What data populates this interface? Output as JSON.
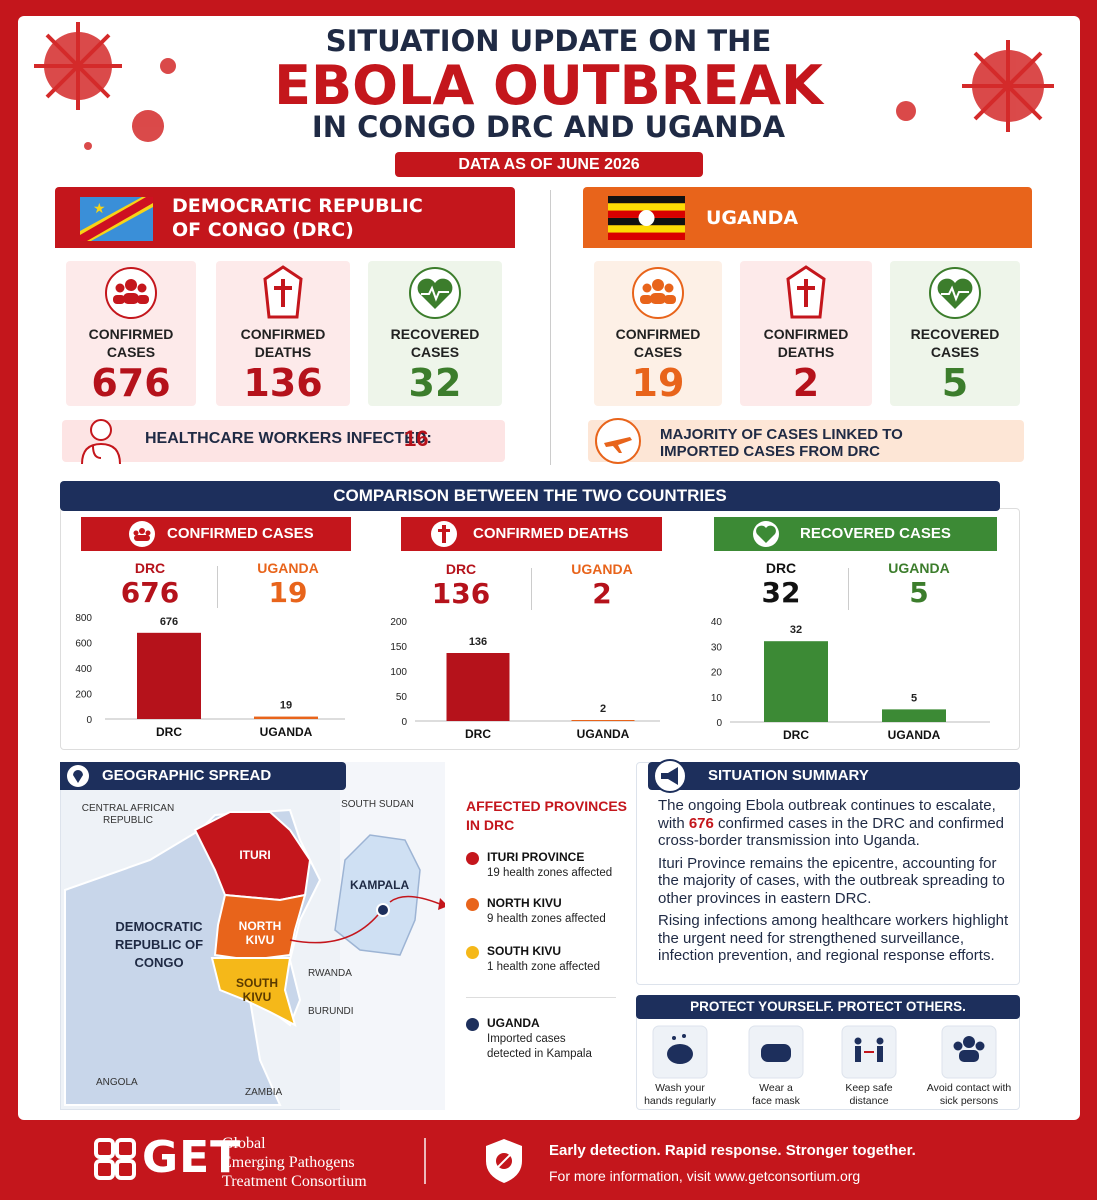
{
  "header": {
    "line1": "SITUATION UPDATE ON THE",
    "line2": "EBOLA OUTBREAK",
    "line3": "IN CONGO DRC AND UGANDA",
    "date": "DATA AS OF JUNE 2026"
  },
  "drc": {
    "name": [
      "DEMOCRATIC REPUBLIC",
      "OF CONGO (DRC)"
    ],
    "stats": [
      {
        "label": [
          "CONFIRMED",
          "CASES"
        ],
        "value": 676
      },
      {
        "label": [
          "CONFIRMED",
          "DEATHS"
        ],
        "value": 136
      },
      {
        "label": [
          "RECOVERED",
          "CASES"
        ],
        "value": 32
      }
    ],
    "note_label": "HEALTHCARE WORKERS INFECTED:",
    "note_value": 16
  },
  "uganda": {
    "name": "UGANDA",
    "stats": [
      {
        "label": [
          "CONFIRMED",
          "CASES"
        ],
        "value": 19
      },
      {
        "label": [
          "CONFIRMED",
          "DEATHS"
        ],
        "value": 2
      },
      {
        "label": [
          "RECOVERED",
          "CASES"
        ],
        "value": 5
      }
    ],
    "note": [
      "MAJORITY OF CASES LINKED TO",
      "IMPORTED CASES FROM DRC"
    ]
  },
  "comparison": {
    "title": "COMPARISON BETWEEN THE TWO COUNTRIES"
  },
  "chart_data": [
    {
      "type": "bar",
      "title": "CONFIRMED CASES",
      "categories": [
        "DRC",
        "UGANDA"
      ],
      "values": [
        676,
        19
      ],
      "colors": [
        "#b5121b",
        "#e8641b"
      ],
      "ylim": [
        0,
        800
      ],
      "yticks": [
        0,
        200,
        400,
        600,
        800
      ],
      "grid": false
    },
    {
      "type": "bar",
      "title": "CONFIRMED DEATHS",
      "categories": [
        "DRC",
        "UGANDA"
      ],
      "values": [
        136,
        2
      ],
      "colors": [
        "#b5121b",
        "#e8641b"
      ],
      "ylim": [
        0,
        200
      ],
      "yticks": [
        0,
        50,
        100,
        150,
        200
      ],
      "grid": false
    },
    {
      "type": "bar",
      "title": "RECOVERED CASES",
      "categories": [
        "DRC",
        "UGANDA"
      ],
      "values": [
        32,
        5
      ],
      "colors": [
        "#3c8a35",
        "#3c8a35"
      ],
      "ylim": [
        0,
        40
      ],
      "yticks": [
        0,
        10,
        20,
        30,
        40
      ],
      "grid": false
    }
  ],
  "geography": {
    "title": "GEOGRAPHIC SPREAD",
    "map_labels": {
      "car": [
        "CENTRAL AFRICAN",
        "REPUBLIC"
      ],
      "south_sudan": "SOUTH SUDAN",
      "ituri": "ITURI",
      "north_kivu": [
        "NORTH",
        "KIVU"
      ],
      "south_kivu": [
        "SOUTH",
        "KIVU"
      ],
      "drc": [
        "DEMOCRATIC",
        "REPUBLIC OF",
        "CONGO"
      ],
      "kampala": "KAMPALA",
      "rwanda": "RWANDA",
      "burundi": "BURUNDI",
      "angola": "ANGOLA",
      "zambia": "ZAMBIA"
    },
    "legend_title": [
      "AFFECTED PROVINCES",
      "IN DRC"
    ],
    "legend": [
      {
        "name": "ITURI PROVINCE",
        "detail": [
          "19 health zones affected"
        ],
        "color": "#c4161c"
      },
      {
        "name": "NORTH KIVU",
        "detail": [
          "9 health zones affected"
        ],
        "color": "#e8641b"
      },
      {
        "name": "SOUTH KIVU",
        "detail": [
          "1 health zone affected"
        ],
        "color": "#f5b819"
      },
      {
        "name": "UGANDA",
        "detail": [
          "Imported cases",
          "detected in Kampala"
        ],
        "color": "#1d2f5c"
      }
    ]
  },
  "summary": {
    "title": "SITUATION SUMMARY",
    "p1": [
      "The ongoing Ebola outbreak continues to escalate, with ",
      "676",
      " confirmed cases in the DRC and confirmed cross-border transmission into Uganda."
    ],
    "p2": "Ituri Province remains the epicentre, accounting for the majority of cases, with the outbreak spreading to other provinces in eastern DRC.",
    "p3": "Rising infections among healthcare workers highlight the urgent need for strengthened surveillance, infection prevention, and regional response efforts."
  },
  "protect": {
    "title": "PROTECT YOURSELF. PROTECT OTHERS.",
    "items": [
      [
        "Wash your",
        "hands regularly"
      ],
      [
        "Wear a",
        "face mask"
      ],
      [
        "Keep safe",
        "distance"
      ],
      [
        "Avoid contact with",
        "sick persons"
      ]
    ]
  },
  "footer": {
    "logo": "GET",
    "org": [
      "Global",
      "Emerging Pathogens",
      "Treatment Consortium"
    ],
    "tagline": "Early detection. Rapid response. Stronger together.",
    "info": "For more information, visit www.getconsortium.org"
  }
}
